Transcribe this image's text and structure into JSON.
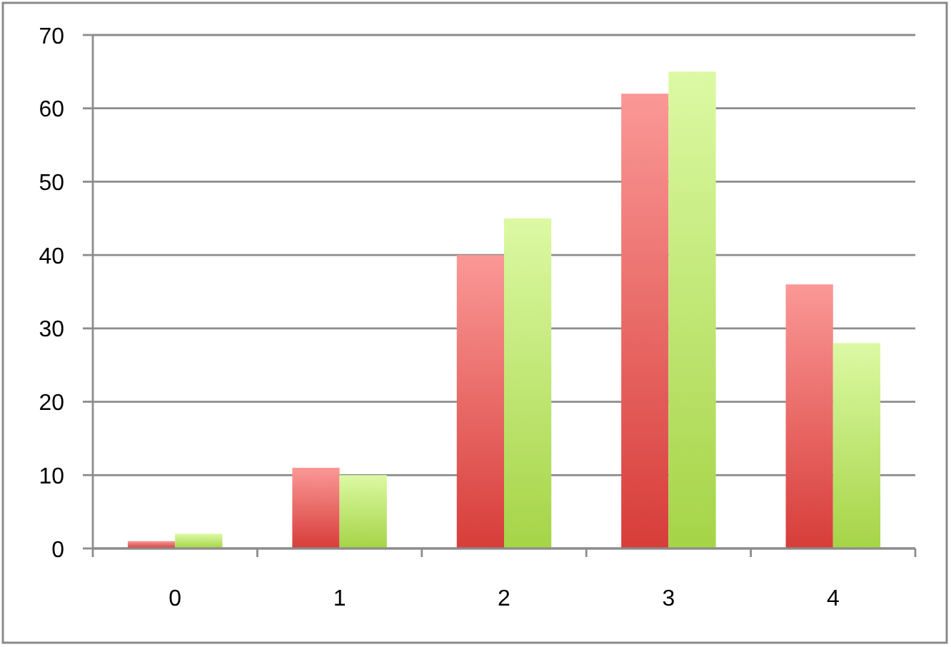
{
  "chart_data": {
    "type": "bar",
    "categories": [
      "0",
      "1",
      "2",
      "3",
      "4"
    ],
    "series": [
      {
        "color": "#e66b68",
        "values": [
          1,
          11,
          40,
          62,
          36
        ]
      },
      {
        "color": "#bfe475",
        "values": [
          2,
          10,
          45,
          65,
          28
        ]
      }
    ],
    "ylim": [
      0,
      70
    ],
    "yticks": [
      0,
      10,
      20,
      30,
      40,
      50,
      60,
      70
    ],
    "grid": "y"
  }
}
